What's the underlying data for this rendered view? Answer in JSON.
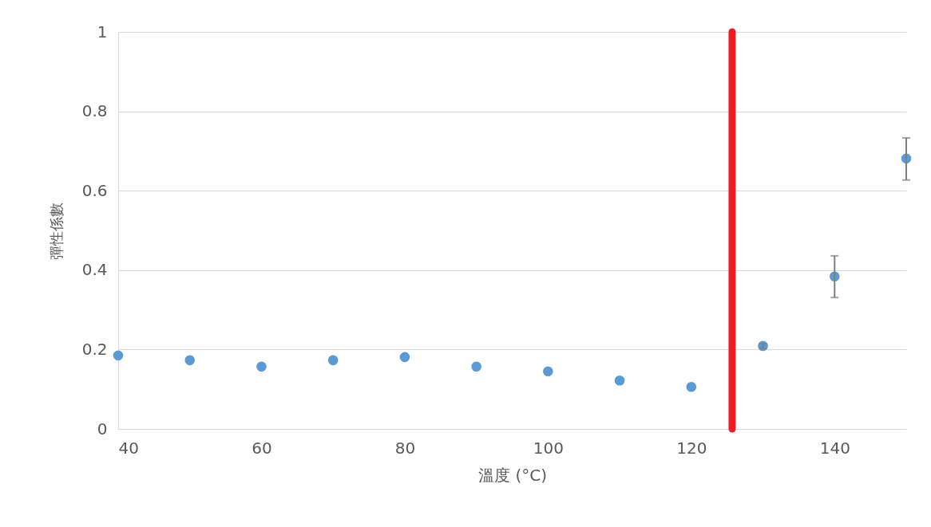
{
  "chart_data": {
    "type": "scatter",
    "xlabel": "溫度 (°C)",
    "ylabel": "彈性係數",
    "x": [
      40,
      50,
      60,
      70,
      80,
      90,
      100,
      110,
      120,
      130,
      140,
      150
    ],
    "series": [
      {
        "color": "#5b9bd5",
        "values": [
          0.185,
          0.173,
          0.157,
          0.173,
          0.181,
          0.157,
          0.145,
          0.122,
          0.106,
          0.209,
          0.384,
          0.681
        ],
        "errors": [
          null,
          null,
          null,
          null,
          null,
          null,
          null,
          null,
          null,
          0.006,
          [
            0.331,
            0.436
          ],
          [
            0.627,
            0.733
          ]
        ]
      }
    ],
    "xlim": [
      40,
      150
    ],
    "xticks": [
      40,
      60,
      80,
      100,
      120,
      140
    ],
    "ylim": [
      0,
      1
    ],
    "yticks": [
      0,
      0.2,
      0.4,
      0.6,
      0.8,
      1
    ],
    "grid": "y",
    "marker": "circle",
    "ref_lines": [
      {
        "axis": "x",
        "value": 125.7,
        "color": "#ed1c24"
      }
    ]
  }
}
